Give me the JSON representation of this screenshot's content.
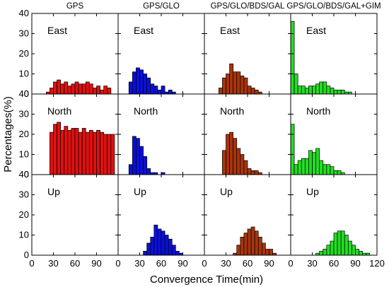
{
  "chart_data": {
    "type": "bar",
    "ylabel": "Percentages(%)",
    "xlabel": "Convergence Time(min)",
    "ylim": [
      0,
      40
    ],
    "yticks": [
      0,
      10,
      20,
      30,
      40
    ],
    "xlim": [
      0,
      120
    ],
    "xticks": [
      0,
      30,
      60,
      90
    ],
    "xticks_last_panel": [
      0,
      30,
      60,
      90,
      120
    ],
    "bin_width_min": 5,
    "bin_starts_min": [
      0,
      5,
      10,
      15,
      20,
      25,
      30,
      35,
      40,
      45,
      50,
      55,
      60,
      65,
      70,
      75,
      80,
      85,
      90,
      95,
      100,
      105,
      110,
      115
    ],
    "grid": false,
    "legend": "none",
    "columns": [
      {
        "title": "GPS",
        "color": "#e01010"
      },
      {
        "title": "GPS/GLO",
        "color": "#0a10d8"
      },
      {
        "title": "GPS/GLO/BDS/GAL",
        "color": "#a8340c"
      },
      {
        "title": "GPS/GLO/BDS/GAL+GIM",
        "color": "#22dd22"
      }
    ],
    "rows": [
      {
        "label": "East"
      },
      {
        "label": "North"
      },
      {
        "label": "Up"
      }
    ],
    "panels": [
      [
        [
          0,
          0,
          0,
          0,
          1,
          3,
          6,
          7,
          5,
          6,
          4,
          5,
          6,
          5,
          5,
          6,
          5,
          3,
          4,
          2,
          4,
          3,
          0,
          0
        ],
        [
          0,
          0,
          0,
          0,
          0,
          21,
          25,
          26,
          22,
          24,
          22,
          23,
          23,
          21,
          23,
          21,
          22,
          21,
          22,
          21,
          20,
          20,
          20,
          0
        ],
        [
          0,
          0,
          0,
          0,
          0,
          0,
          0,
          0,
          0,
          0,
          0,
          0,
          0,
          0,
          0,
          0,
          0,
          0,
          0,
          0,
          0,
          0,
          0,
          0
        ]
      ],
      [
        [
          0,
          0,
          0,
          6,
          11,
          13,
          12,
          10,
          8,
          5,
          4,
          2,
          4,
          1,
          2,
          1,
          0,
          0,
          0,
          0,
          0,
          0,
          0,
          0
        ],
        [
          0,
          0,
          0,
          5,
          19,
          18,
          14,
          9,
          3,
          1,
          1,
          0,
          1,
          0,
          0,
          0,
          0,
          0,
          0,
          0,
          0,
          0,
          0,
          0
        ],
        [
          0,
          0,
          0,
          0,
          0,
          0,
          0,
          2,
          6,
          9,
          15,
          13,
          12,
          10,
          8,
          5,
          2,
          1,
          0,
          0,
          0,
          0,
          0,
          0
        ]
      ],
      [
        [
          0,
          0,
          0,
          0,
          3,
          8,
          10,
          15,
          11,
          11,
          9,
          8,
          4,
          3,
          2,
          1,
          0,
          0,
          0,
          0,
          0,
          0,
          0,
          0
        ],
        [
          0,
          0,
          0,
          0,
          0,
          12,
          20,
          21,
          18,
          13,
          10,
          7,
          3,
          2,
          2,
          1,
          0,
          0,
          0,
          0,
          0,
          0,
          0,
          0
        ],
        [
          0,
          0,
          0,
          0,
          0,
          0,
          0,
          0,
          1,
          5,
          9,
          11,
          13,
          14,
          12,
          9,
          6,
          3,
          3,
          1,
          0,
          0,
          0,
          0
        ]
      ],
      [
        [
          36,
          10,
          4,
          4,
          3,
          4,
          4,
          5,
          6,
          6,
          4,
          3,
          2,
          2,
          2,
          1,
          1,
          0,
          0,
          0,
          0,
          0,
          0,
          0
        ],
        [
          25,
          5,
          7,
          8,
          8,
          12,
          11,
          13,
          7,
          5,
          5,
          4,
          2,
          2,
          1,
          0,
          0,
          0,
          0,
          0,
          0,
          0,
          0,
          0
        ],
        [
          0,
          0,
          0,
          0,
          0,
          0,
          0,
          1,
          2,
          3,
          5,
          7,
          11,
          12,
          12,
          10,
          7,
          5,
          3,
          2,
          1,
          1,
          0,
          0
        ]
      ]
    ]
  }
}
